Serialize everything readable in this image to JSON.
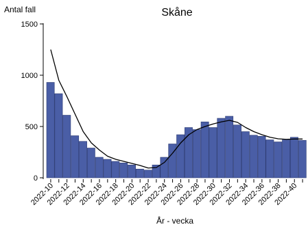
{
  "chart_data": {
    "type": "bar",
    "title": "Skåne",
    "ylabel": "Antal fall",
    "xlabel": "År - vecka",
    "ylim": [
      0,
      1500
    ],
    "yticks": [
      0,
      500,
      1000,
      1500
    ],
    "categories": [
      "2022-10",
      "2022-11",
      "2022-12",
      "2022-13",
      "2022-14",
      "2022-15",
      "2022-16",
      "2022-17",
      "2022-18",
      "2022-19",
      "2022-20",
      "2022-21",
      "2022-22",
      "2022-23",
      "2022-24",
      "2022-25",
      "2022-26",
      "2022-27",
      "2022-28",
      "2022-29",
      "2022-30",
      "2022-31",
      "2022-32",
      "2022-33",
      "2022-34",
      "2022-35",
      "2022-36",
      "2022-37",
      "2022-38",
      "2022-39",
      "2022-40",
      "2022-41"
    ],
    "xtick_labels": [
      "2022-10",
      "2022-12",
      "2022-14",
      "2022-16",
      "2022-18",
      "2022-20",
      "2022-22",
      "2022-24",
      "2022-26",
      "2022-28",
      "2022-30",
      "2022-32",
      "2022-34",
      "2022-36",
      "2022-38",
      "2022-40"
    ],
    "series": [
      {
        "type": "bar",
        "color": "#4a5ea6",
        "values": [
          930,
          820,
          610,
          410,
          355,
          290,
          200,
          180,
          160,
          145,
          125,
          85,
          75,
          125,
          200,
          330,
          420,
          490,
          470,
          545,
          490,
          580,
          600,
          515,
          450,
          415,
          405,
          370,
          350,
          370,
          395,
          365
        ]
      },
      {
        "type": "line",
        "color": "#000000",
        "values": [
          1250,
          950,
          790,
          620,
          450,
          340,
          270,
          210,
          180,
          160,
          140,
          120,
          95,
          100,
          150,
          240,
          340,
          420,
          470,
          500,
          525,
          545,
          560,
          540,
          490,
          450,
          420,
          395,
          380,
          375,
          378,
          378
        ]
      }
    ]
  }
}
